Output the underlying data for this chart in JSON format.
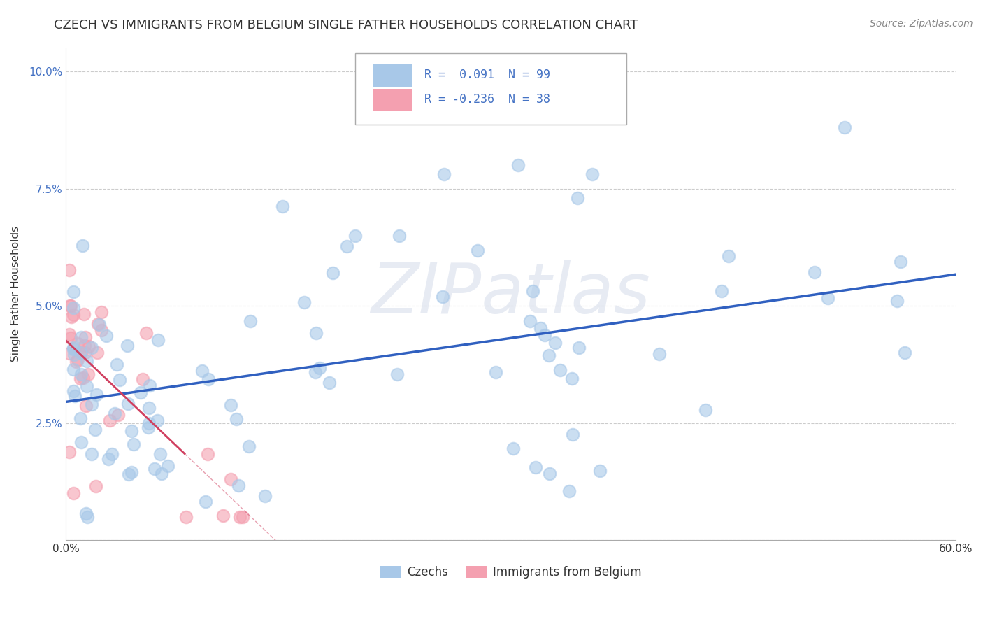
{
  "title": "CZECH VS IMMIGRANTS FROM BELGIUM SINGLE FATHER HOUSEHOLDS CORRELATION CHART",
  "source": "Source: ZipAtlas.com",
  "ylabel": "Single Father Households",
  "xlim": [
    0.0,
    0.6
  ],
  "ylim": [
    0.0,
    0.105
  ],
  "xtick_vals": [
    0.0,
    0.1,
    0.2,
    0.3,
    0.4,
    0.5,
    0.6
  ],
  "xticklabels": [
    "0.0%",
    "",
    "",
    "",
    "",
    "",
    "60.0%"
  ],
  "ytick_vals": [
    0.0,
    0.025,
    0.05,
    0.075,
    0.1
  ],
  "yticklabels": [
    "",
    "2.5%",
    "5.0%",
    "7.5%",
    "10.0%"
  ],
  "czech_R": 0.091,
  "czech_N": 99,
  "belgium_R": -0.236,
  "belgium_N": 38,
  "czech_color": "#a8c8e8",
  "belgium_color": "#f4a0b0",
  "czech_line_color": "#3060c0",
  "belgium_line_color": "#d04060",
  "legend_czechs": "Czechs",
  "legend_belgium": "Immigrants from Belgium",
  "watermark_text": "ZIPatlas",
  "title_fontsize": 13,
  "source_fontsize": 10,
  "tick_fontsize": 11,
  "ylabel_fontsize": 11
}
